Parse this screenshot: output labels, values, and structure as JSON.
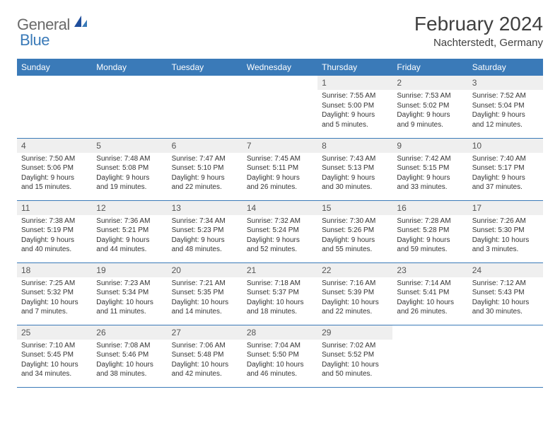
{
  "logo": {
    "general": "General",
    "blue": "Blue"
  },
  "title": "February 2024",
  "location": "Nachterstedt, Germany",
  "colors": {
    "header_bg": "#3a7ab8",
    "header_fg": "#ffffff",
    "text": "#333333",
    "daynum_bg": "#efefef",
    "border": "#3a7ab8"
  },
  "day_headers": [
    "Sunday",
    "Monday",
    "Tuesday",
    "Wednesday",
    "Thursday",
    "Friday",
    "Saturday"
  ],
  "weeks": [
    [
      null,
      null,
      null,
      null,
      {
        "n": "1",
        "sr": "Sunrise: 7:55 AM",
        "ss": "Sunset: 5:00 PM",
        "d1": "Daylight: 9 hours",
        "d2": "and 5 minutes."
      },
      {
        "n": "2",
        "sr": "Sunrise: 7:53 AM",
        "ss": "Sunset: 5:02 PM",
        "d1": "Daylight: 9 hours",
        "d2": "and 9 minutes."
      },
      {
        "n": "3",
        "sr": "Sunrise: 7:52 AM",
        "ss": "Sunset: 5:04 PM",
        "d1": "Daylight: 9 hours",
        "d2": "and 12 minutes."
      }
    ],
    [
      {
        "n": "4",
        "sr": "Sunrise: 7:50 AM",
        "ss": "Sunset: 5:06 PM",
        "d1": "Daylight: 9 hours",
        "d2": "and 15 minutes."
      },
      {
        "n": "5",
        "sr": "Sunrise: 7:48 AM",
        "ss": "Sunset: 5:08 PM",
        "d1": "Daylight: 9 hours",
        "d2": "and 19 minutes."
      },
      {
        "n": "6",
        "sr": "Sunrise: 7:47 AM",
        "ss": "Sunset: 5:10 PM",
        "d1": "Daylight: 9 hours",
        "d2": "and 22 minutes."
      },
      {
        "n": "7",
        "sr": "Sunrise: 7:45 AM",
        "ss": "Sunset: 5:11 PM",
        "d1": "Daylight: 9 hours",
        "d2": "and 26 minutes."
      },
      {
        "n": "8",
        "sr": "Sunrise: 7:43 AM",
        "ss": "Sunset: 5:13 PM",
        "d1": "Daylight: 9 hours",
        "d2": "and 30 minutes."
      },
      {
        "n": "9",
        "sr": "Sunrise: 7:42 AM",
        "ss": "Sunset: 5:15 PM",
        "d1": "Daylight: 9 hours",
        "d2": "and 33 minutes."
      },
      {
        "n": "10",
        "sr": "Sunrise: 7:40 AM",
        "ss": "Sunset: 5:17 PM",
        "d1": "Daylight: 9 hours",
        "d2": "and 37 minutes."
      }
    ],
    [
      {
        "n": "11",
        "sr": "Sunrise: 7:38 AM",
        "ss": "Sunset: 5:19 PM",
        "d1": "Daylight: 9 hours",
        "d2": "and 40 minutes."
      },
      {
        "n": "12",
        "sr": "Sunrise: 7:36 AM",
        "ss": "Sunset: 5:21 PM",
        "d1": "Daylight: 9 hours",
        "d2": "and 44 minutes."
      },
      {
        "n": "13",
        "sr": "Sunrise: 7:34 AM",
        "ss": "Sunset: 5:23 PM",
        "d1": "Daylight: 9 hours",
        "d2": "and 48 minutes."
      },
      {
        "n": "14",
        "sr": "Sunrise: 7:32 AM",
        "ss": "Sunset: 5:24 PM",
        "d1": "Daylight: 9 hours",
        "d2": "and 52 minutes."
      },
      {
        "n": "15",
        "sr": "Sunrise: 7:30 AM",
        "ss": "Sunset: 5:26 PM",
        "d1": "Daylight: 9 hours",
        "d2": "and 55 minutes."
      },
      {
        "n": "16",
        "sr": "Sunrise: 7:28 AM",
        "ss": "Sunset: 5:28 PM",
        "d1": "Daylight: 9 hours",
        "d2": "and 59 minutes."
      },
      {
        "n": "17",
        "sr": "Sunrise: 7:26 AM",
        "ss": "Sunset: 5:30 PM",
        "d1": "Daylight: 10 hours",
        "d2": "and 3 minutes."
      }
    ],
    [
      {
        "n": "18",
        "sr": "Sunrise: 7:25 AM",
        "ss": "Sunset: 5:32 PM",
        "d1": "Daylight: 10 hours",
        "d2": "and 7 minutes."
      },
      {
        "n": "19",
        "sr": "Sunrise: 7:23 AM",
        "ss": "Sunset: 5:34 PM",
        "d1": "Daylight: 10 hours",
        "d2": "and 11 minutes."
      },
      {
        "n": "20",
        "sr": "Sunrise: 7:21 AM",
        "ss": "Sunset: 5:35 PM",
        "d1": "Daylight: 10 hours",
        "d2": "and 14 minutes."
      },
      {
        "n": "21",
        "sr": "Sunrise: 7:18 AM",
        "ss": "Sunset: 5:37 PM",
        "d1": "Daylight: 10 hours",
        "d2": "and 18 minutes."
      },
      {
        "n": "22",
        "sr": "Sunrise: 7:16 AM",
        "ss": "Sunset: 5:39 PM",
        "d1": "Daylight: 10 hours",
        "d2": "and 22 minutes."
      },
      {
        "n": "23",
        "sr": "Sunrise: 7:14 AM",
        "ss": "Sunset: 5:41 PM",
        "d1": "Daylight: 10 hours",
        "d2": "and 26 minutes."
      },
      {
        "n": "24",
        "sr": "Sunrise: 7:12 AM",
        "ss": "Sunset: 5:43 PM",
        "d1": "Daylight: 10 hours",
        "d2": "and 30 minutes."
      }
    ],
    [
      {
        "n": "25",
        "sr": "Sunrise: 7:10 AM",
        "ss": "Sunset: 5:45 PM",
        "d1": "Daylight: 10 hours",
        "d2": "and 34 minutes."
      },
      {
        "n": "26",
        "sr": "Sunrise: 7:08 AM",
        "ss": "Sunset: 5:46 PM",
        "d1": "Daylight: 10 hours",
        "d2": "and 38 minutes."
      },
      {
        "n": "27",
        "sr": "Sunrise: 7:06 AM",
        "ss": "Sunset: 5:48 PM",
        "d1": "Daylight: 10 hours",
        "d2": "and 42 minutes."
      },
      {
        "n": "28",
        "sr": "Sunrise: 7:04 AM",
        "ss": "Sunset: 5:50 PM",
        "d1": "Daylight: 10 hours",
        "d2": "and 46 minutes."
      },
      {
        "n": "29",
        "sr": "Sunrise: 7:02 AM",
        "ss": "Sunset: 5:52 PM",
        "d1": "Daylight: 10 hours",
        "d2": "and 50 minutes."
      },
      null,
      null
    ]
  ]
}
